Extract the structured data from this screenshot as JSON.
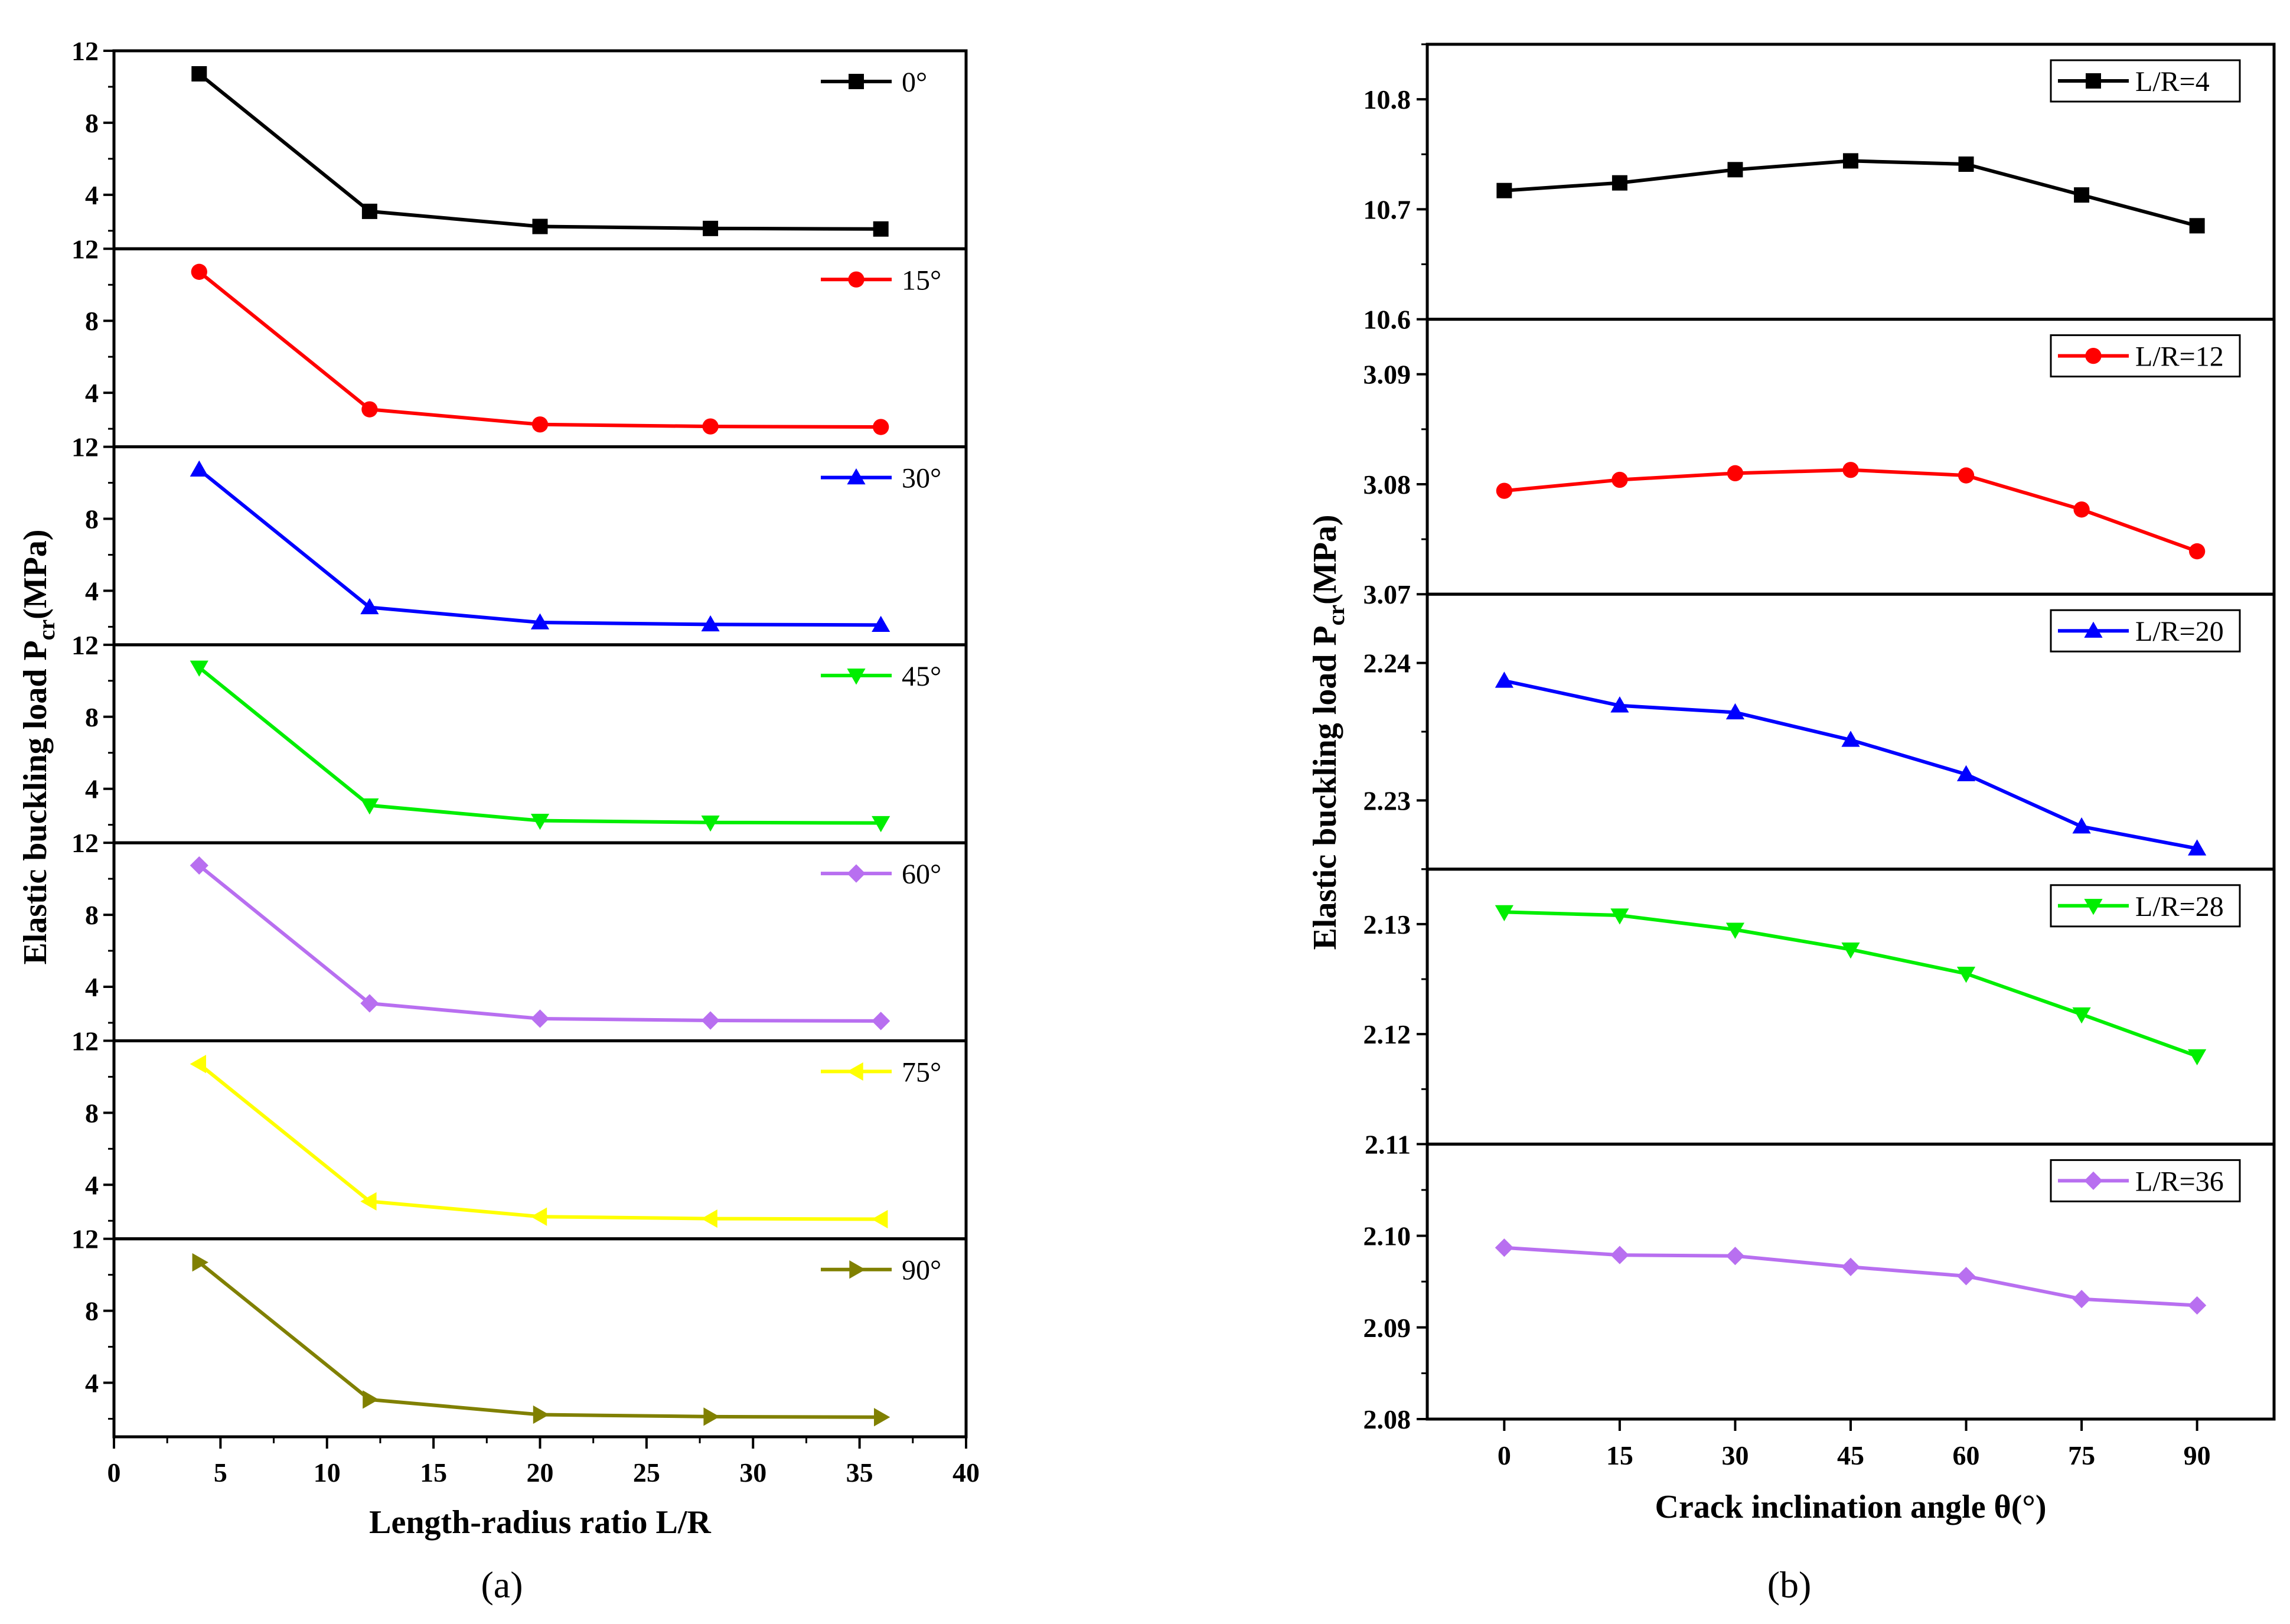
{
  "captions": {
    "a": "(a)",
    "b": "(b)"
  },
  "chart_data": [
    {
      "id": "a",
      "type": "line",
      "title": "",
      "xlabel": "Length-radius ratio L/R",
      "ylabel": "Elastic buckling load P",
      "ylabel_sub": "cr",
      "ylabel_unit": "(MPa)",
      "xlim": [
        0,
        40
      ],
      "xticks": [
        0,
        5,
        10,
        15,
        20,
        25,
        30,
        35,
        40
      ],
      "ylim": [
        1,
        12
      ],
      "yticks": [
        4,
        8,
        12
      ],
      "x": [
        4,
        12,
        20,
        28,
        36
      ],
      "series": [
        {
          "name": "0°",
          "color": "#000000",
          "marker": "square",
          "values": [
            10.72,
            3.08,
            2.24,
            2.13,
            2.1
          ]
        },
        {
          "name": "15°",
          "color": "#ff0000",
          "marker": "circle",
          "values": [
            10.72,
            3.08,
            2.24,
            2.13,
            2.1
          ]
        },
        {
          "name": "30°",
          "color": "#0000ff",
          "marker": "triangle-up",
          "values": [
            10.73,
            3.08,
            2.24,
            2.13,
            2.1
          ]
        },
        {
          "name": "45°",
          "color": "#00ee00",
          "marker": "triangle-down",
          "values": [
            10.74,
            3.08,
            2.23,
            2.13,
            2.1
          ]
        },
        {
          "name": "60°",
          "color": "#b86ff0",
          "marker": "diamond",
          "values": [
            10.74,
            3.08,
            2.23,
            2.13,
            2.1
          ]
        },
        {
          "name": "75°",
          "color": "#ffff00",
          "marker": "triangle-left",
          "values": [
            10.71,
            3.08,
            2.23,
            2.12,
            2.09
          ]
        },
        {
          "name": "90°",
          "color": "#808000",
          "marker": "triangle-right",
          "values": [
            10.69,
            3.07,
            2.23,
            2.12,
            2.09
          ]
        }
      ]
    },
    {
      "id": "b",
      "type": "line",
      "title": "",
      "xlabel": "Crack inclination angle θ(°)",
      "ylabel": "Elastic buckling load P",
      "ylabel_sub": "cr",
      "ylabel_unit": "(MPa)",
      "xlim": [
        -10,
        100
      ],
      "xticks": [
        0,
        15,
        30,
        45,
        60,
        75,
        90
      ],
      "x": [
        0,
        15,
        30,
        45,
        60,
        75,
        90
      ],
      "series": [
        {
          "name": "L/R=4",
          "color": "#000000",
          "marker": "square",
          "ylim": [
            10.6,
            10.85
          ],
          "yticks": [
            "10.6",
            "10.7",
            "10.8"
          ],
          "values": [
            10.717,
            10.724,
            10.736,
            10.744,
            10.741,
            10.713,
            10.685
          ]
        },
        {
          "name": "L/R=12",
          "color": "#ff0000",
          "marker": "circle",
          "ylim": [
            3.07,
            3.095
          ],
          "yticks": [
            "3.07",
            "3.08",
            "3.09"
          ],
          "values": [
            3.0794,
            3.0804,
            3.081,
            3.0813,
            3.0808,
            3.0777,
            3.0739
          ]
        },
        {
          "name": "L/R=20",
          "color": "#0000ff",
          "marker": "triangle-up",
          "ylim": [
            2.225,
            2.245
          ],
          "yticks": [
            "2.23",
            "2.24"
          ],
          "values": [
            2.2387,
            2.2369,
            2.2364,
            2.2344,
            2.2319,
            2.2281,
            2.2265
          ]
        },
        {
          "name": "L/R=28",
          "color": "#00ee00",
          "marker": "triangle-down",
          "ylim": [
            2.11,
            2.135
          ],
          "yticks": [
            "2.11",
            "2.12",
            "2.13"
          ],
          "values": [
            2.1311,
            2.1308,
            2.1295,
            2.1277,
            2.1255,
            2.1218,
            2.118
          ]
        },
        {
          "name": "L/R=36",
          "color": "#b86ff0",
          "marker": "diamond",
          "ylim": [
            2.08,
            2.11
          ],
          "yticks": [
            "2.08",
            "2.09",
            "2.10"
          ],
          "values": [
            2.0987,
            2.0979,
            2.0978,
            2.0966,
            2.0956,
            2.0931,
            2.0924
          ]
        }
      ]
    }
  ]
}
